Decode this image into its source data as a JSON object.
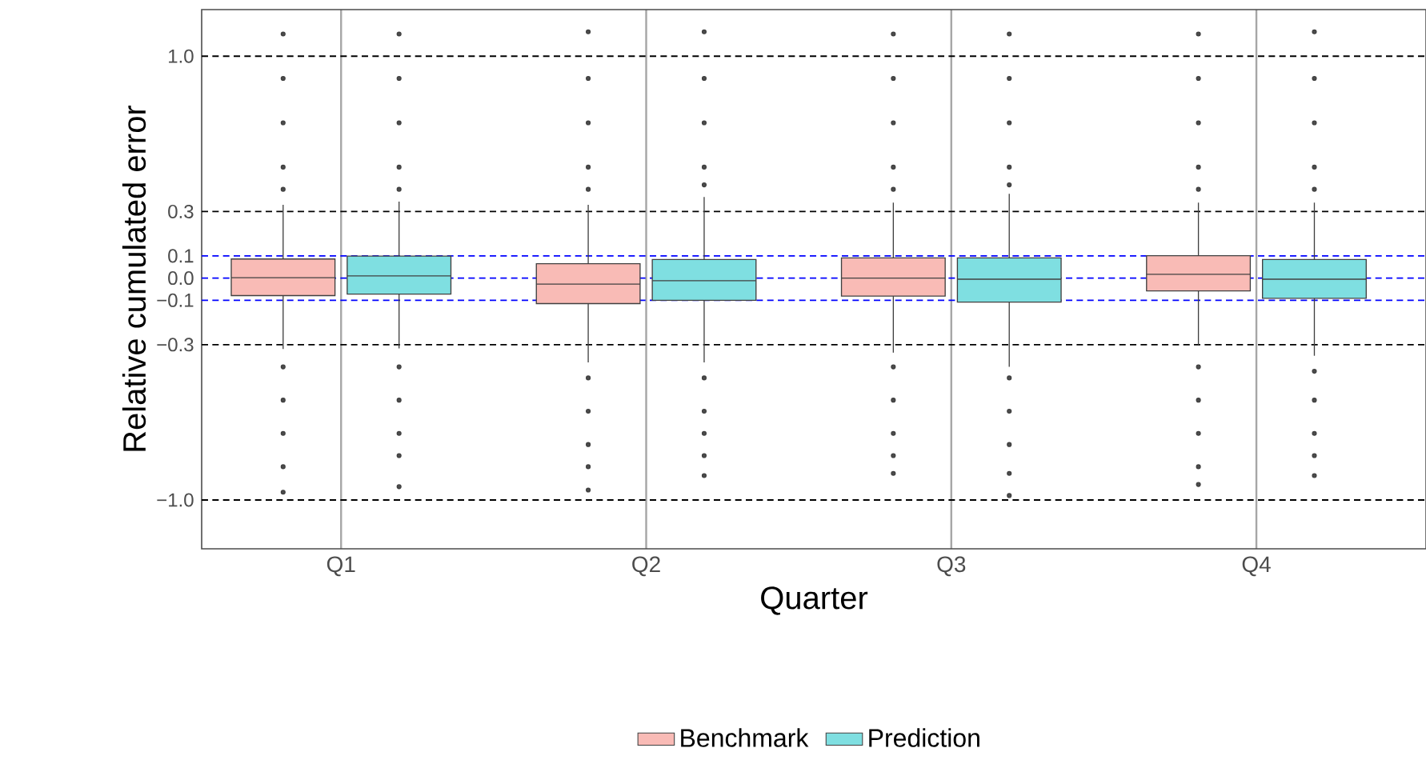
{
  "chart_data": {
    "type": "box",
    "xlabel": "Quarter",
    "ylabel": "Relative cumulated error",
    "categories": [
      "Q1",
      "Q2",
      "Q3",
      "Q4"
    ],
    "ylim": [
      -1.22,
      1.21
    ],
    "yticks": [
      {
        "value": -1.0,
        "label": "−1.0"
      },
      {
        "value": -0.3,
        "label": "−0.3"
      },
      {
        "value": -0.1,
        "label": "−0.1"
      },
      {
        "value": 0.0,
        "label": "0.0"
      },
      {
        "value": 0.1,
        "label": "0.1"
      },
      {
        "value": 0.3,
        "label": "0.3"
      },
      {
        "value": 1.0,
        "label": "1.0"
      }
    ],
    "grid": "x",
    "legend": "bottom",
    "series": [
      {
        "name": "Benchmark",
        "color": "#f9bbb6",
        "boxes": [
          {
            "low": -0.32,
            "q1": -0.079,
            "median": 0.002,
            "q3": 0.086,
            "high": 0.33,
            "outliers": [
              1.1,
              0.9,
              0.7,
              0.5,
              0.4,
              -0.4,
              -0.55,
              -0.7,
              -0.85,
              -0.965
            ]
          },
          {
            "low": -0.38,
            "q1": -0.115,
            "median": -0.027,
            "q3": 0.065,
            "high": 0.33,
            "outliers": [
              1.11,
              0.9,
              0.7,
              0.5,
              0.4,
              -0.45,
              -0.6,
              -0.75,
              -0.85,
              -0.955
            ]
          },
          {
            "low": -0.336,
            "q1": -0.081,
            "median": 0.0,
            "q3": 0.091,
            "high": 0.34,
            "outliers": [
              1.1,
              0.9,
              0.7,
              0.5,
              0.4,
              -0.4,
              -0.55,
              -0.7,
              -0.8,
              -0.88
            ]
          },
          {
            "low": -0.3,
            "q1": -0.058,
            "median": 0.017,
            "q3": 0.101,
            "high": 0.34,
            "outliers": [
              1.1,
              0.9,
              0.7,
              0.5,
              0.4,
              -0.4,
              -0.55,
              -0.7,
              -0.85,
              -0.93
            ]
          }
        ]
      },
      {
        "name": "Prediction",
        "color": "#7fdfe1",
        "boxes": [
          {
            "low": -0.317,
            "q1": -0.072,
            "median": 0.01,
            "q3": 0.099,
            "high": 0.345,
            "outliers": [
              1.1,
              0.9,
              0.7,
              0.5,
              0.4,
              -0.4,
              -0.55,
              -0.7,
              -0.8,
              -0.94
            ]
          },
          {
            "low": -0.38,
            "q1": -0.1,
            "median": -0.012,
            "q3": 0.084,
            "high": 0.365,
            "outliers": [
              1.11,
              0.9,
              0.7,
              0.5,
              0.42,
              -0.45,
              -0.6,
              -0.7,
              -0.8,
              -0.89
            ]
          },
          {
            "low": -0.4,
            "q1": -0.108,
            "median": -0.005,
            "q3": 0.091,
            "high": 0.38,
            "outliers": [
              1.1,
              0.9,
              0.7,
              0.5,
              0.42,
              -0.45,
              -0.6,
              -0.75,
              -0.88,
              -0.98
            ]
          },
          {
            "low": -0.35,
            "q1": -0.091,
            "median": -0.005,
            "q3": 0.084,
            "high": 0.34,
            "outliers": [
              1.11,
              0.9,
              0.7,
              0.5,
              0.4,
              -0.42,
              -0.55,
              -0.7,
              -0.8,
              -0.89
            ]
          }
        ]
      }
    ],
    "ref_lines": [
      {
        "axis": "y",
        "value": 1.0,
        "color": "#000000",
        "line_style": "dashed"
      },
      {
        "axis": "y",
        "value": 0.3,
        "color": "#000000",
        "line_style": "dashed"
      },
      {
        "axis": "y",
        "value": 0.1,
        "color": "#0000ff",
        "line_style": "dashed"
      },
      {
        "axis": "y",
        "value": 0.0,
        "color": "#0000ff",
        "line_style": "dashed"
      },
      {
        "axis": "y",
        "value": -0.1,
        "color": "#0000ff",
        "line_style": "dashed"
      },
      {
        "axis": "y",
        "value": -0.3,
        "color": "#000000",
        "line_style": "dashed"
      },
      {
        "axis": "y",
        "value": -1.0,
        "color": "#000000",
        "line_style": "dashed"
      }
    ]
  }
}
